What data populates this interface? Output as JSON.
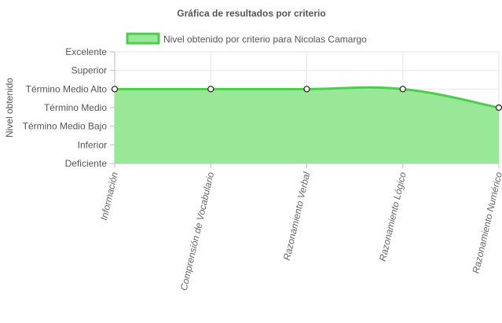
{
  "chart_data": {
    "type": "area",
    "title": "Gráfica de resultados por criterio",
    "ylabel": "Nivel obtenido",
    "xlabel": "",
    "y_levels": [
      "Deficiente",
      "Inferior",
      "Término Medio Bajo",
      "Término Medio",
      "Término Medio Alto",
      "Superior",
      "Excelente"
    ],
    "categories": [
      "Información",
      "Comprensión de Vocabulario",
      "Razonamiento Verbal",
      "Razonamiento Lógico",
      "Razonamiento Numérico"
    ],
    "series": [
      {
        "name": "Nivel obtenido por criterio para Nicolas Camargo",
        "values": [
          4,
          4,
          4,
          4,
          3
        ],
        "value_labels": [
          "Término Medio Alto",
          "Término Medio Alto",
          "Término Medio Alto",
          "Término Medio Alto",
          "Término Medio"
        ]
      }
    ],
    "ylim": [
      0,
      6
    ],
    "grid": true,
    "legend_position": "top",
    "colors": {
      "fill": "#98e898",
      "line": "#4ccd4c",
      "grid": "#e6e6e6",
      "axis": "#bbbbbb"
    }
  }
}
